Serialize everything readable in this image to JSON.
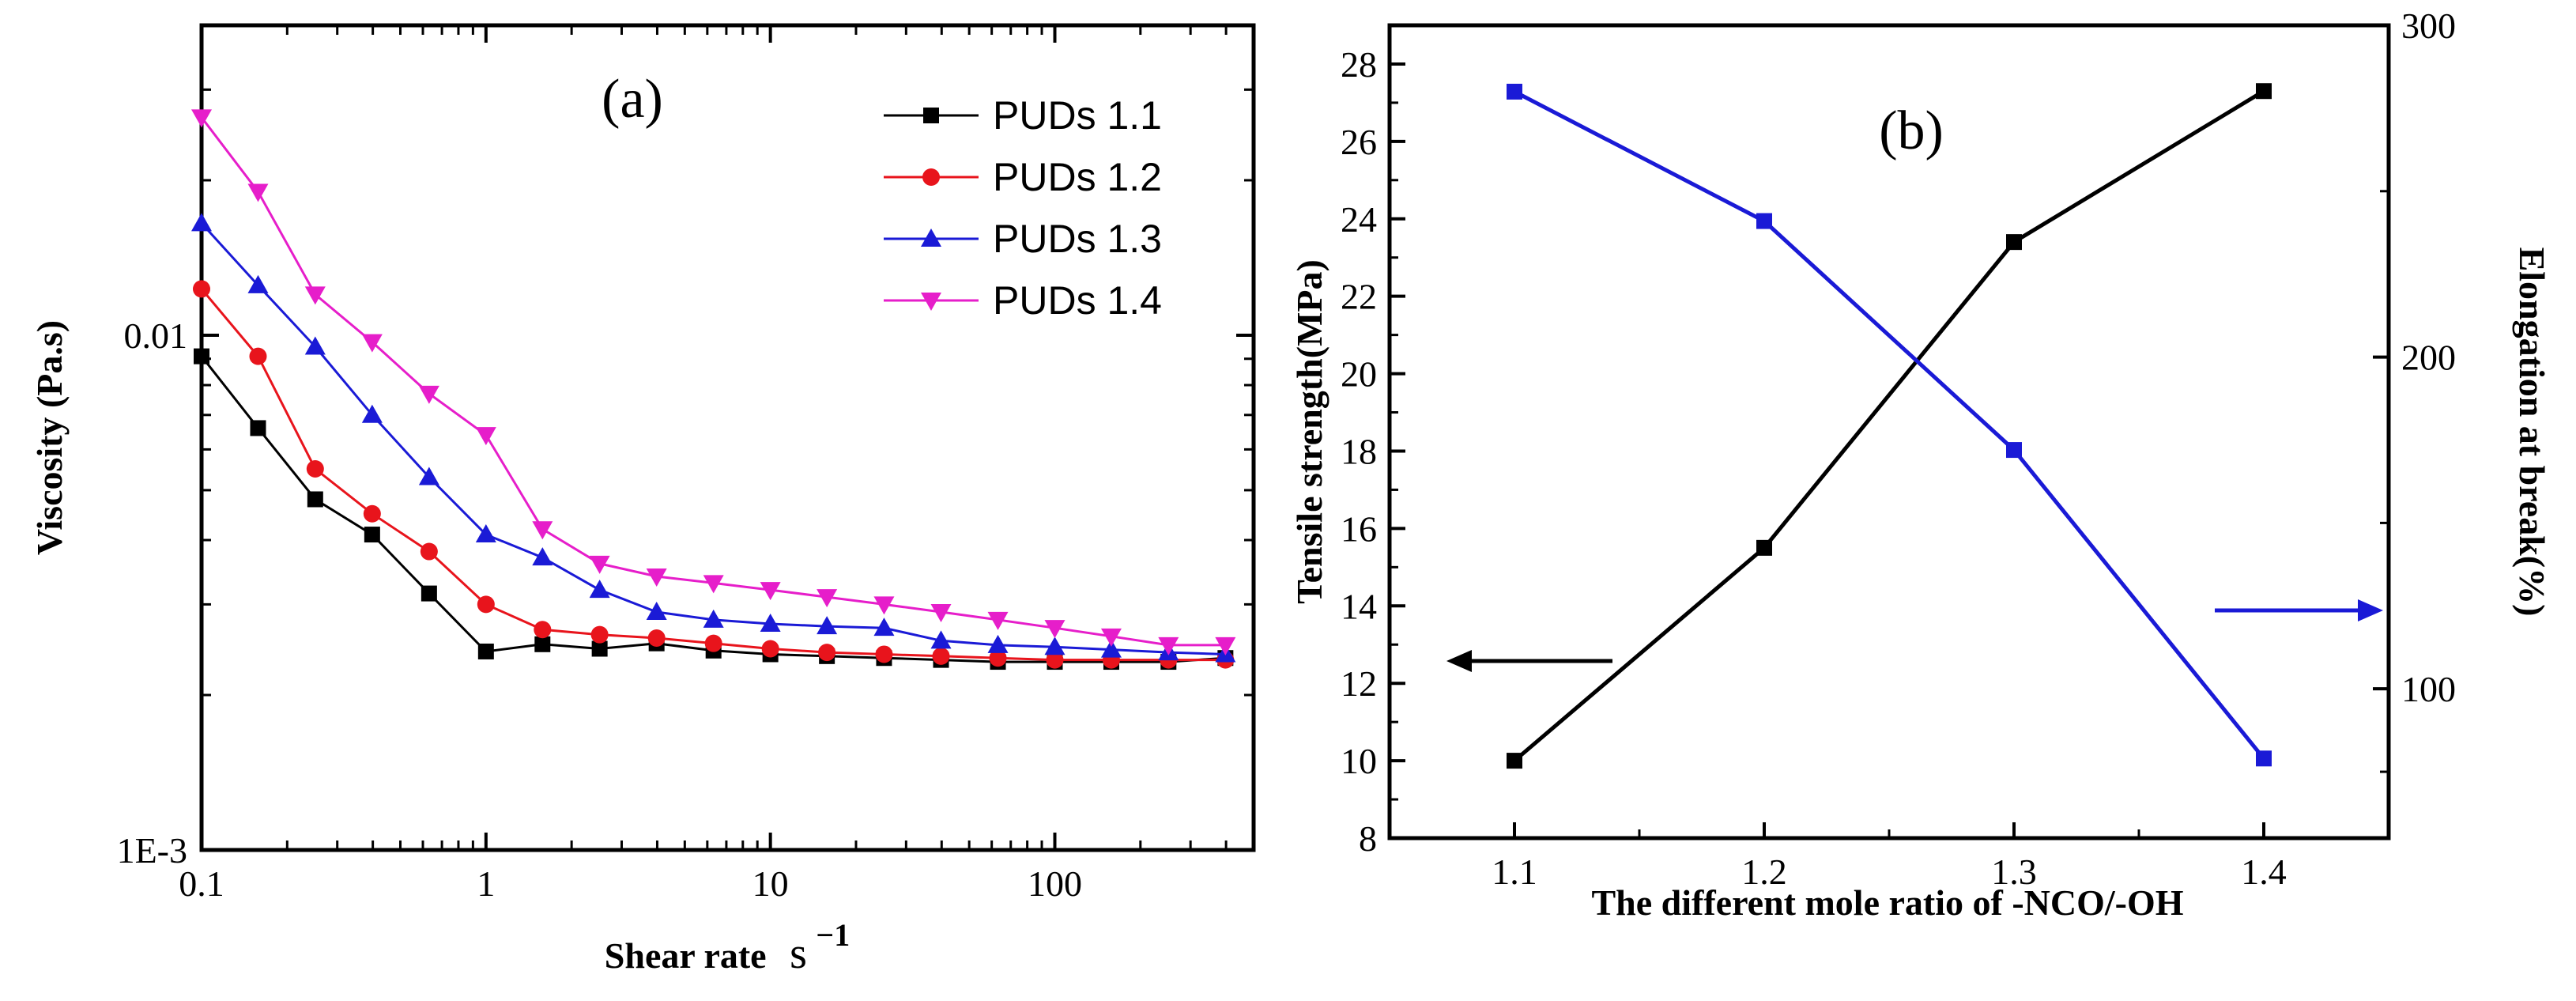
{
  "chart_data": [
    {
      "panel_label": "(a)",
      "type": "line",
      "xscale": "log",
      "yscale": "log",
      "xlabel": "Shear rate",
      "xlabel_unit": "s",
      "xlabel_unit_exp": "−1",
      "ylabel": "Viscosity (Pa.s)",
      "xlim": [
        0.1,
        500
      ],
      "ylim": [
        0.001,
        0.04
      ],
      "x_ticks": [
        {
          "value": 0.1,
          "label": "0.1"
        },
        {
          "value": 1,
          "label": "1"
        },
        {
          "value": 10,
          "label": "10"
        },
        {
          "value": 100,
          "label": "100"
        }
      ],
      "y_ticks": [
        {
          "value": 0.001,
          "label": "1E-3"
        },
        {
          "value": 0.01,
          "label": "0.01"
        }
      ],
      "legend_position": "top-right",
      "x": [
        0.1,
        0.158,
        0.251,
        0.398,
        0.631,
        1,
        1.58,
        2.51,
        3.98,
        6.31,
        10,
        15.8,
        25.1,
        39.8,
        63.1,
        100,
        158,
        251,
        398
      ],
      "series": [
        {
          "name": "PUDs 1.1",
          "color": "#000000",
          "marker": "square",
          "values": [
            0.0091,
            0.0066,
            0.0048,
            0.0041,
            0.00315,
            0.00243,
            0.00251,
            0.00246,
            0.00252,
            0.00244,
            0.0024,
            0.00238,
            0.00236,
            0.00234,
            0.00232,
            0.00232,
            0.00232,
            0.00232,
            0.00236
          ]
        },
        {
          "name": "PUDs 1.2",
          "color": "#e8141c",
          "marker": "circle",
          "values": [
            0.0123,
            0.0091,
            0.0055,
            0.0045,
            0.0038,
            0.003,
            0.00268,
            0.00262,
            0.00258,
            0.00252,
            0.00246,
            0.00242,
            0.0024,
            0.00238,
            0.00236,
            0.00234,
            0.00234,
            0.00234,
            0.00234
          ]
        },
        {
          "name": "PUDs 1.3",
          "color": "#1a1ad6",
          "marker": "triangle-up",
          "values": [
            0.0165,
            0.0125,
            0.0095,
            0.007,
            0.0053,
            0.0041,
            0.0037,
            0.0032,
            0.0029,
            0.0028,
            0.00275,
            0.00272,
            0.0027,
            0.00255,
            0.0025,
            0.00248,
            0.00245,
            0.00242,
            0.0024
          ]
        },
        {
          "name": "PUDs 1.4",
          "color": "#e61eca",
          "marker": "triangle-down",
          "values": [
            0.0265,
            0.019,
            0.012,
            0.0097,
            0.0077,
            0.0064,
            0.0042,
            0.0036,
            0.0034,
            0.0033,
            0.0032,
            0.0031,
            0.003,
            0.0029,
            0.0028,
            0.0027,
            0.0026,
            0.0025,
            0.0025
          ]
        }
      ]
    },
    {
      "panel_label": "(b)",
      "type": "line",
      "xlabel": "The different mole ratio of -NCO/-OH",
      "ylabel": "Tensile strength(MPa)",
      "ylabel_right": "Elongation at break(%)",
      "xlim": [
        1.05,
        1.45
      ],
      "ylim": [
        8,
        29
      ],
      "ylim_right": [
        55,
        300
      ],
      "x_ticks": [
        {
          "value": 1.1,
          "label": "1.1"
        },
        {
          "value": 1.2,
          "label": "1.2"
        },
        {
          "value": 1.3,
          "label": "1.3"
        },
        {
          "value": 1.4,
          "label": "1.4"
        }
      ],
      "y_ticks": [
        {
          "value": 8,
          "label": "8"
        },
        {
          "value": 10,
          "label": "10"
        },
        {
          "value": 12,
          "label": "12"
        },
        {
          "value": 14,
          "label": "14"
        },
        {
          "value": 16,
          "label": "16"
        },
        {
          "value": 18,
          "label": "18"
        },
        {
          "value": 20,
          "label": "20"
        },
        {
          "value": 22,
          "label": "22"
        },
        {
          "value": 24,
          "label": "24"
        },
        {
          "value": 26,
          "label": "26"
        },
        {
          "value": 28,
          "label": "28"
        }
      ],
      "y_ticks_right": [
        {
          "value": 100,
          "label": "100"
        },
        {
          "value": 200,
          "label": "200"
        },
        {
          "value": 300,
          "label": "300"
        }
      ],
      "x": [
        1.1,
        1.2,
        1.3,
        1.4
      ],
      "series": [
        {
          "name": "Tensile strength",
          "axis": "left",
          "color": "#000000",
          "marker": "square",
          "values": [
            10.0,
            15.5,
            23.4,
            27.3
          ]
        },
        {
          "name": "Elongation at break",
          "axis": "right",
          "color": "#1a1ad6",
          "marker": "square",
          "values": [
            280,
            241,
            172,
            79
          ]
        }
      ],
      "annotations": [
        {
          "type": "arrow",
          "points_to": "left-axis",
          "color": "#000000"
        },
        {
          "type": "arrow",
          "points_to": "right-axis",
          "color": "#1a1ad6"
        }
      ]
    }
  ]
}
